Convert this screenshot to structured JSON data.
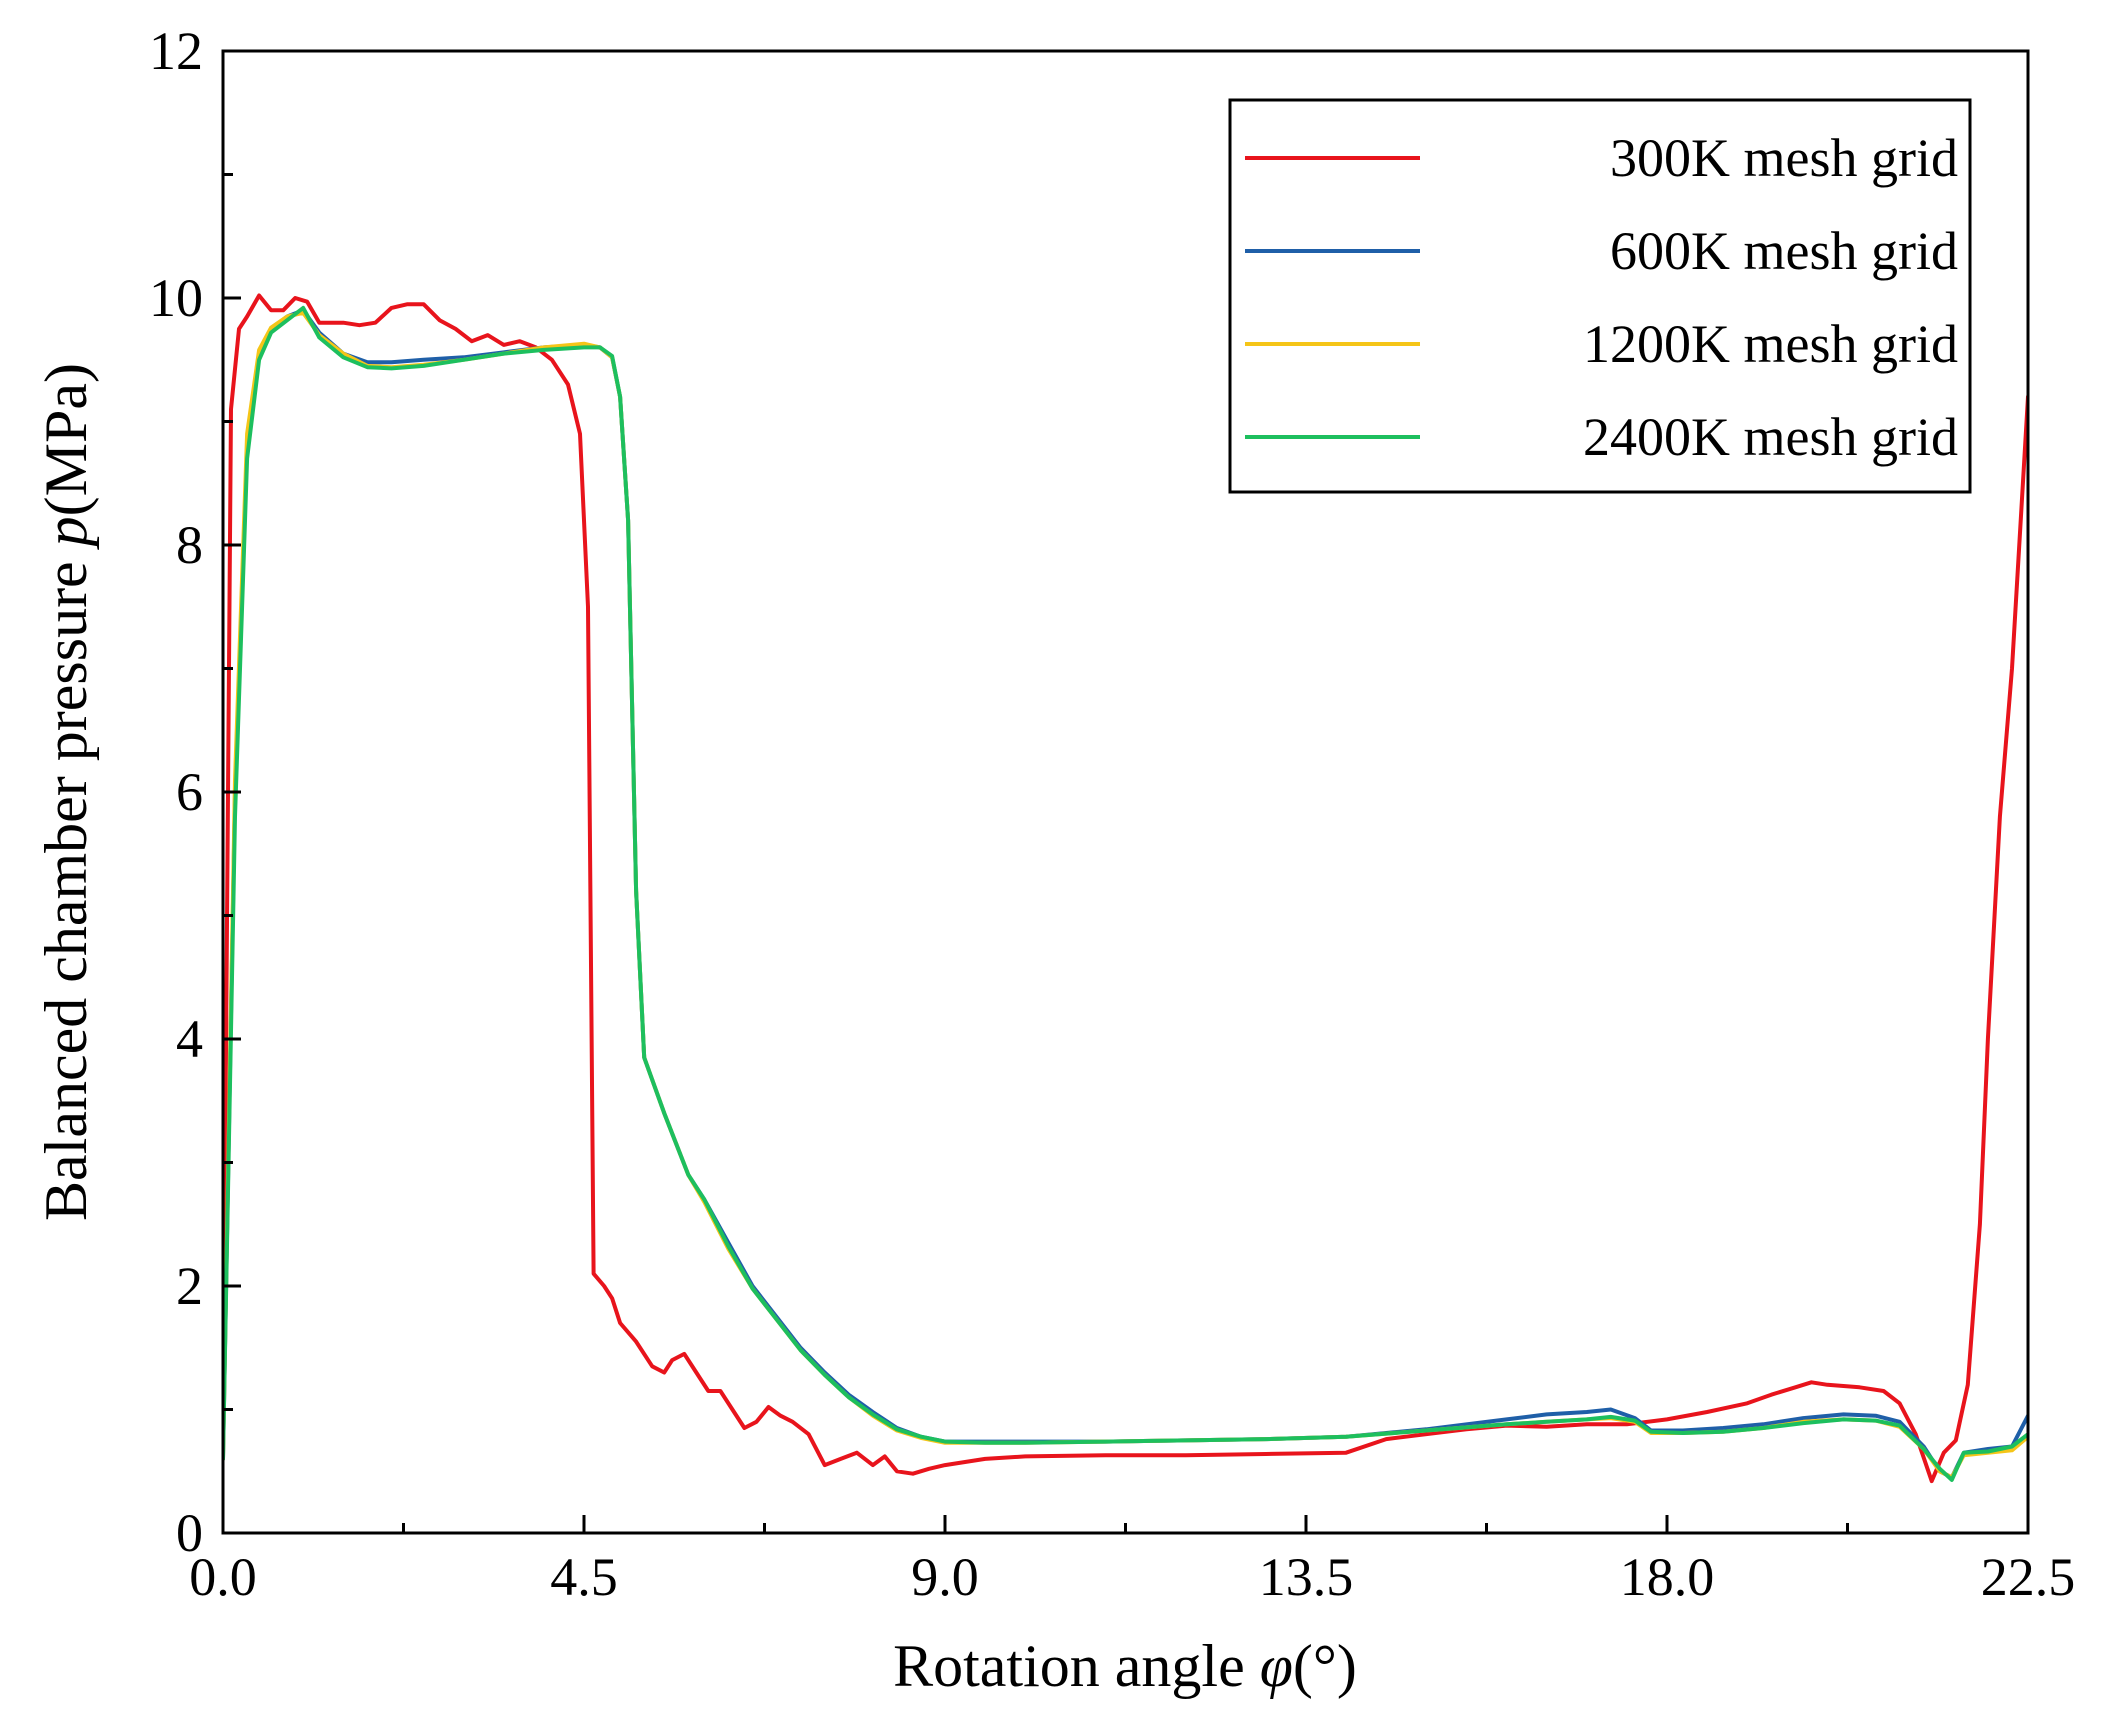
{
  "chart_data": {
    "type": "line",
    "xlabel": "Rotation angle",
    "xlabel_symbol": "φ",
    "xlabel_unit": "(°)",
    "ylabel": "Balanced chamber pressure",
    "ylabel_symbol": "p",
    "ylabel_unit": "(MPa)",
    "xlim": [
      0,
      22.5
    ],
    "ylim": [
      0,
      12
    ],
    "xticks": [
      0,
      4.5,
      9,
      13.5,
      18,
      22.5
    ],
    "xtick_labels": [
      "0.0",
      "4.5",
      "9.0",
      "13.5",
      "18.0",
      "22.5"
    ],
    "yticks": [
      0,
      2,
      4,
      6,
      8,
      10,
      12
    ],
    "ytick_labels": [
      "0",
      "2",
      "4",
      "6",
      "8",
      "10",
      "12"
    ],
    "legend_position": "top-right",
    "grid": false,
    "series": [
      {
        "name": "300K mesh grid",
        "color": "#e8141c",
        "points": [
          [
            0,
            0.8
          ],
          [
            0.1,
            9.1
          ],
          [
            0.2,
            9.75
          ],
          [
            0.3,
            9.85
          ],
          [
            0.45,
            10.02
          ],
          [
            0.6,
            9.9
          ],
          [
            0.75,
            9.9
          ],
          [
            0.9,
            10.0
          ],
          [
            1.05,
            9.97
          ],
          [
            1.2,
            9.8
          ],
          [
            1.5,
            9.8
          ],
          [
            1.7,
            9.78
          ],
          [
            1.9,
            9.8
          ],
          [
            2.1,
            9.92
          ],
          [
            2.3,
            9.95
          ],
          [
            2.5,
            9.95
          ],
          [
            2.7,
            9.82
          ],
          [
            2.9,
            9.75
          ],
          [
            3.1,
            9.65
          ],
          [
            3.3,
            9.7
          ],
          [
            3.5,
            9.62
          ],
          [
            3.7,
            9.65
          ],
          [
            3.9,
            9.6
          ],
          [
            4.1,
            9.5
          ],
          [
            4.3,
            9.3
          ],
          [
            4.45,
            8.9
          ],
          [
            4.55,
            7.5
          ],
          [
            4.62,
            2.1
          ],
          [
            4.75,
            2.0
          ],
          [
            4.85,
            1.9
          ],
          [
            4.95,
            1.7
          ],
          [
            5.15,
            1.55
          ],
          [
            5.35,
            1.35
          ],
          [
            5.5,
            1.3
          ],
          [
            5.6,
            1.4
          ],
          [
            5.75,
            1.45
          ],
          [
            5.9,
            1.3
          ],
          [
            6.05,
            1.15
          ],
          [
            6.2,
            1.15
          ],
          [
            6.35,
            1.0
          ],
          [
            6.5,
            0.85
          ],
          [
            6.65,
            0.9
          ],
          [
            6.8,
            1.02
          ],
          [
            6.95,
            0.95
          ],
          [
            7.1,
            0.9
          ],
          [
            7.3,
            0.8
          ],
          [
            7.5,
            0.55
          ],
          [
            7.7,
            0.6
          ],
          [
            7.9,
            0.65
          ],
          [
            8.1,
            0.55
          ],
          [
            8.25,
            0.62
          ],
          [
            8.4,
            0.5
          ],
          [
            8.6,
            0.48
          ],
          [
            8.8,
            0.52
          ],
          [
            9.0,
            0.55
          ],
          [
            9.5,
            0.6
          ],
          [
            10,
            0.62
          ],
          [
            11,
            0.63
          ],
          [
            12,
            0.63
          ],
          [
            13,
            0.64
          ],
          [
            14,
            0.65
          ],
          [
            14.5,
            0.76
          ],
          [
            15,
            0.8
          ],
          [
            15.5,
            0.84
          ],
          [
            16,
            0.87
          ],
          [
            16.5,
            0.86
          ],
          [
            17,
            0.88
          ],
          [
            17.5,
            0.88
          ],
          [
            18,
            0.92
          ],
          [
            18.5,
            0.98
          ],
          [
            19,
            1.05
          ],
          [
            19.3,
            1.12
          ],
          [
            19.6,
            1.18
          ],
          [
            19.8,
            1.22
          ],
          [
            20,
            1.2
          ],
          [
            20.4,
            1.18
          ],
          [
            20.7,
            1.15
          ],
          [
            20.9,
            1.05
          ],
          [
            21.1,
            0.8
          ],
          [
            21.3,
            0.42
          ],
          [
            21.45,
            0.65
          ],
          [
            21.6,
            0.75
          ],
          [
            21.75,
            1.2
          ],
          [
            21.9,
            2.5
          ],
          [
            22.0,
            4.0
          ],
          [
            22.15,
            5.8
          ],
          [
            22.3,
            7.0
          ],
          [
            22.5,
            9.2
          ]
        ]
      },
      {
        "name": "600K mesh grid",
        "color": "#1f5fa8",
        "points": [
          [
            0,
            0.6
          ],
          [
            0.15,
            6.0
          ],
          [
            0.3,
            8.8
          ],
          [
            0.45,
            9.55
          ],
          [
            0.6,
            9.75
          ],
          [
            0.8,
            9.85
          ],
          [
            1.0,
            9.9
          ],
          [
            1.2,
            9.72
          ],
          [
            1.5,
            9.55
          ],
          [
            1.8,
            9.48
          ],
          [
            2.1,
            9.48
          ],
          [
            2.5,
            9.5
          ],
          [
            3.0,
            9.52
          ],
          [
            3.5,
            9.56
          ],
          [
            4.0,
            9.6
          ],
          [
            4.5,
            9.62
          ],
          [
            4.7,
            9.6
          ],
          [
            4.85,
            9.52
          ],
          [
            4.95,
            9.2
          ],
          [
            5.05,
            8.2
          ],
          [
            5.15,
            5.2
          ],
          [
            5.25,
            3.85
          ],
          [
            5.5,
            3.4
          ],
          [
            5.8,
            2.9
          ],
          [
            6.0,
            2.7
          ],
          [
            6.3,
            2.35
          ],
          [
            6.6,
            2.0
          ],
          [
            6.9,
            1.75
          ],
          [
            7.2,
            1.5
          ],
          [
            7.5,
            1.3
          ],
          [
            7.8,
            1.12
          ],
          [
            8.1,
            0.98
          ],
          [
            8.4,
            0.85
          ],
          [
            8.7,
            0.78
          ],
          [
            9.0,
            0.74
          ],
          [
            9.5,
            0.74
          ],
          [
            10,
            0.74
          ],
          [
            11,
            0.74
          ],
          [
            12,
            0.75
          ],
          [
            13,
            0.76
          ],
          [
            14,
            0.78
          ],
          [
            15,
            0.84
          ],
          [
            16,
            0.92
          ],
          [
            16.5,
            0.96
          ],
          [
            17,
            0.98
          ],
          [
            17.3,
            1.0
          ],
          [
            17.6,
            0.93
          ],
          [
            17.8,
            0.83
          ],
          [
            18.2,
            0.83
          ],
          [
            18.7,
            0.85
          ],
          [
            19.2,
            0.88
          ],
          [
            19.7,
            0.93
          ],
          [
            20.2,
            0.96
          ],
          [
            20.6,
            0.95
          ],
          [
            20.9,
            0.9
          ],
          [
            21.2,
            0.7
          ],
          [
            21.4,
            0.5
          ],
          [
            21.55,
            0.45
          ],
          [
            21.7,
            0.65
          ],
          [
            22.0,
            0.68
          ],
          [
            22.3,
            0.7
          ],
          [
            22.5,
            0.95
          ]
        ]
      },
      {
        "name": "1200K mesh grid",
        "color": "#f5c518",
        "points": [
          [
            0,
            0.6
          ],
          [
            0.15,
            6.1
          ],
          [
            0.3,
            8.9
          ],
          [
            0.45,
            9.58
          ],
          [
            0.6,
            9.76
          ],
          [
            0.8,
            9.85
          ],
          [
            1.0,
            9.88
          ],
          [
            1.2,
            9.7
          ],
          [
            1.5,
            9.55
          ],
          [
            1.8,
            9.45
          ],
          [
            2.1,
            9.44
          ],
          [
            2.5,
            9.46
          ],
          [
            3.0,
            9.5
          ],
          [
            3.5,
            9.55
          ],
          [
            4.0,
            9.6
          ],
          [
            4.5,
            9.63
          ],
          [
            4.7,
            9.6
          ],
          [
            4.85,
            9.52
          ],
          [
            4.95,
            9.2
          ],
          [
            5.05,
            8.2
          ],
          [
            5.15,
            5.2
          ],
          [
            5.25,
            3.85
          ],
          [
            5.5,
            3.4
          ],
          [
            5.8,
            2.9
          ],
          [
            6.0,
            2.68
          ],
          [
            6.3,
            2.3
          ],
          [
            6.6,
            1.98
          ],
          [
            6.9,
            1.73
          ],
          [
            7.2,
            1.48
          ],
          [
            7.5,
            1.28
          ],
          [
            7.8,
            1.1
          ],
          [
            8.1,
            0.95
          ],
          [
            8.4,
            0.83
          ],
          [
            8.7,
            0.77
          ],
          [
            9.0,
            0.73
          ],
          [
            9.5,
            0.73
          ],
          [
            10,
            0.73
          ],
          [
            11,
            0.74
          ],
          [
            12,
            0.75
          ],
          [
            13,
            0.76
          ],
          [
            14,
            0.78
          ],
          [
            15,
            0.83
          ],
          [
            16,
            0.88
          ],
          [
            16.5,
            0.9
          ],
          [
            17,
            0.92
          ],
          [
            17.3,
            0.93
          ],
          [
            17.6,
            0.9
          ],
          [
            17.8,
            0.81
          ],
          [
            18.2,
            0.81
          ],
          [
            18.7,
            0.82
          ],
          [
            19.2,
            0.85
          ],
          [
            19.7,
            0.9
          ],
          [
            20.2,
            0.92
          ],
          [
            20.6,
            0.91
          ],
          [
            20.9,
            0.86
          ],
          [
            21.2,
            0.68
          ],
          [
            21.4,
            0.5
          ],
          [
            21.55,
            0.45
          ],
          [
            21.7,
            0.63
          ],
          [
            22.0,
            0.65
          ],
          [
            22.3,
            0.67
          ],
          [
            22.5,
            0.78
          ]
        ]
      },
      {
        "name": "2400K mesh grid",
        "color": "#1dbf5e",
        "points": [
          [
            0,
            0.6
          ],
          [
            0.15,
            5.8
          ],
          [
            0.3,
            8.7
          ],
          [
            0.45,
            9.5
          ],
          [
            0.6,
            9.72
          ],
          [
            0.8,
            9.82
          ],
          [
            1.0,
            9.92
          ],
          [
            1.2,
            9.68
          ],
          [
            1.5,
            9.52
          ],
          [
            1.8,
            9.44
          ],
          [
            2.1,
            9.43
          ],
          [
            2.5,
            9.45
          ],
          [
            3.0,
            9.5
          ],
          [
            3.5,
            9.55
          ],
          [
            4.0,
            9.58
          ],
          [
            4.5,
            9.6
          ],
          [
            4.7,
            9.6
          ],
          [
            4.85,
            9.53
          ],
          [
            4.95,
            9.2
          ],
          [
            5.05,
            8.2
          ],
          [
            5.15,
            5.2
          ],
          [
            5.25,
            3.85
          ],
          [
            5.5,
            3.4
          ],
          [
            5.8,
            2.9
          ],
          [
            6.0,
            2.7
          ],
          [
            6.3,
            2.32
          ],
          [
            6.6,
            1.98
          ],
          [
            6.9,
            1.73
          ],
          [
            7.2,
            1.48
          ],
          [
            7.5,
            1.28
          ],
          [
            7.8,
            1.1
          ],
          [
            8.1,
            0.96
          ],
          [
            8.4,
            0.84
          ],
          [
            8.7,
            0.78
          ],
          [
            9.0,
            0.74
          ],
          [
            9.5,
            0.73
          ],
          [
            10,
            0.73
          ],
          [
            11,
            0.74
          ],
          [
            12,
            0.75
          ],
          [
            13,
            0.76
          ],
          [
            14,
            0.78
          ],
          [
            15,
            0.83
          ],
          [
            16,
            0.88
          ],
          [
            16.5,
            0.9
          ],
          [
            17,
            0.92
          ],
          [
            17.3,
            0.94
          ],
          [
            17.6,
            0.91
          ],
          [
            17.8,
            0.82
          ],
          [
            18.2,
            0.81
          ],
          [
            18.7,
            0.82
          ],
          [
            19.2,
            0.85
          ],
          [
            19.7,
            0.89
          ],
          [
            20.2,
            0.92
          ],
          [
            20.6,
            0.91
          ],
          [
            20.9,
            0.87
          ],
          [
            21.2,
            0.68
          ],
          [
            21.4,
            0.52
          ],
          [
            21.55,
            0.43
          ],
          [
            21.7,
            0.65
          ],
          [
            22.0,
            0.66
          ],
          [
            22.3,
            0.7
          ],
          [
            22.5,
            0.8
          ]
        ]
      }
    ]
  }
}
